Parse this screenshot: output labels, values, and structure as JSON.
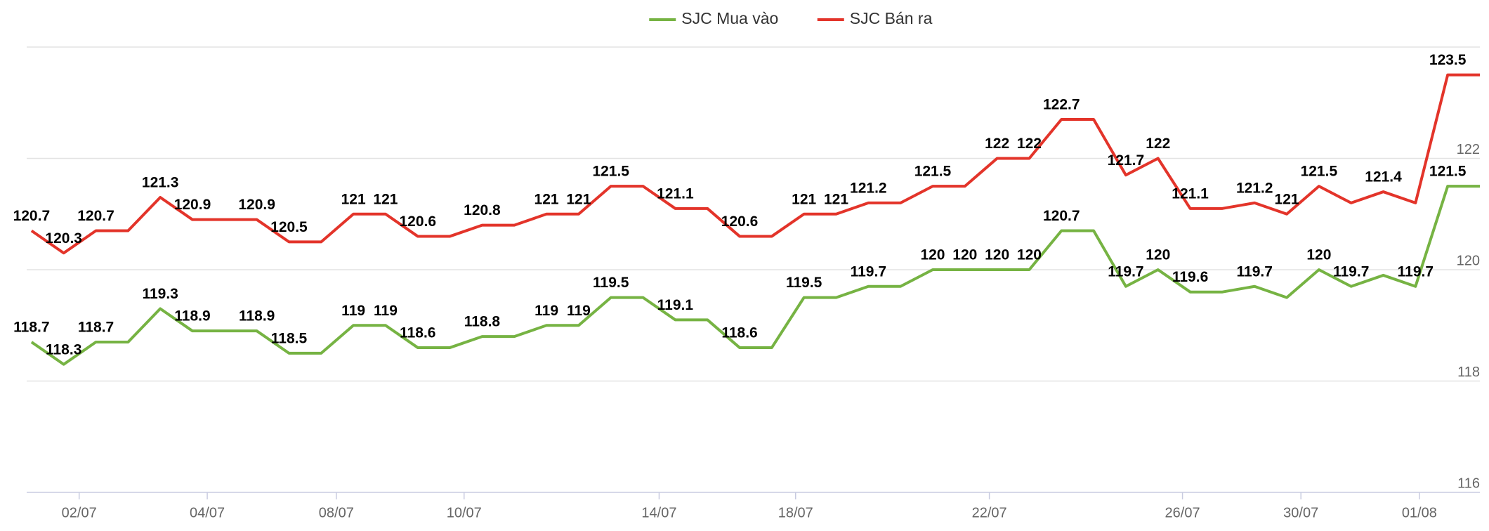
{
  "chart_data": {
    "type": "line",
    "x": [
      0,
      1,
      2,
      3,
      4,
      5,
      6,
      7,
      8,
      9,
      10,
      11,
      12,
      13,
      14,
      15,
      16,
      17,
      18,
      19,
      20,
      21,
      22,
      23,
      24,
      25,
      26,
      27,
      28,
      29,
      30,
      31,
      32,
      33,
      34,
      35,
      36,
      37,
      38,
      39,
      40,
      41,
      42,
      43,
      44,
      45
    ],
    "xlim": [
      -0.15,
      45
    ],
    "xticks": [
      {
        "value": 1.48,
        "label": "02/07"
      },
      {
        "value": 5.46,
        "label": "04/07"
      },
      {
        "value": 9.47,
        "label": "08/07"
      },
      {
        "value": 13.44,
        "label": "10/07"
      },
      {
        "value": 19.5,
        "label": "14/07"
      },
      {
        "value": 23.74,
        "label": "18/07"
      },
      {
        "value": 29.76,
        "label": "22/07"
      },
      {
        "value": 35.76,
        "label": "26/07"
      },
      {
        "value": 39.44,
        "label": "30/07"
      },
      {
        "value": 43.12,
        "label": "01/08"
      }
    ],
    "ylim": [
      116,
      124
    ],
    "yticks": [
      116,
      118,
      120,
      122
    ],
    "grid": true,
    "legend": "top",
    "series": [
      {
        "name": "SJC Mua vào",
        "color": "#76b343",
        "values": [
          118.7,
          118.3,
          118.7,
          118.7,
          119.3,
          118.9,
          118.9,
          118.9,
          118.5,
          118.5,
          119,
          119,
          118.6,
          118.6,
          118.8,
          118.8,
          119,
          119,
          119.5,
          119.5,
          119.1,
          119.1,
          118.6,
          118.6,
          119.5,
          119.5,
          119.7,
          119.7,
          120,
          120,
          120,
          120,
          120.7,
          120.7,
          119.7,
          120,
          119.6,
          119.6,
          119.7,
          119.5,
          120,
          119.7,
          119.9,
          119.7,
          121.5,
          121.5
        ],
        "value_labels": [
          "118.7",
          "118.3",
          "118.7",
          null,
          "119.3",
          "118.9",
          null,
          "118.9",
          "118.5",
          null,
          "119",
          "119",
          "118.6",
          null,
          "118.8",
          null,
          "119",
          "119",
          "119.5",
          null,
          "119.1",
          null,
          "118.6",
          null,
          "119.5",
          null,
          "119.7",
          null,
          "120",
          "120",
          "120",
          "120",
          "120.7",
          null,
          "119.7",
          "120",
          "119.6",
          null,
          "119.7",
          null,
          "120",
          "119.7",
          null,
          "119.7",
          "121.5",
          null
        ]
      },
      {
        "name": "SJC Bán ra",
        "color": "#e3342a",
        "values": [
          120.7,
          120.3,
          120.7,
          120.7,
          121.3,
          120.9,
          120.9,
          120.9,
          120.5,
          120.5,
          121,
          121,
          120.6,
          120.6,
          120.8,
          120.8,
          121,
          121,
          121.5,
          121.5,
          121.1,
          121.1,
          120.6,
          120.6,
          121,
          121,
          121.2,
          121.2,
          121.5,
          121.5,
          122,
          122,
          122.7,
          122.7,
          121.7,
          122,
          121.1,
          121.1,
          121.2,
          121,
          121.5,
          121.2,
          121.4,
          121.2,
          123.5,
          123.5
        ],
        "value_labels": [
          "120.7",
          "120.3",
          "120.7",
          null,
          "121.3",
          "120.9",
          null,
          "120.9",
          "120.5",
          null,
          "121",
          "121",
          "120.6",
          null,
          "120.8",
          null,
          "121",
          "121",
          "121.5",
          null,
          "121.1",
          null,
          "120.6",
          null,
          "121",
          "121",
          "121.2",
          null,
          "121.5",
          null,
          "122",
          "122",
          "122.7",
          null,
          "121.7",
          "122",
          "121.1",
          null,
          "121.2",
          "121",
          "121.5",
          null,
          "121.4",
          null,
          "123.5",
          null
        ]
      }
    ]
  }
}
